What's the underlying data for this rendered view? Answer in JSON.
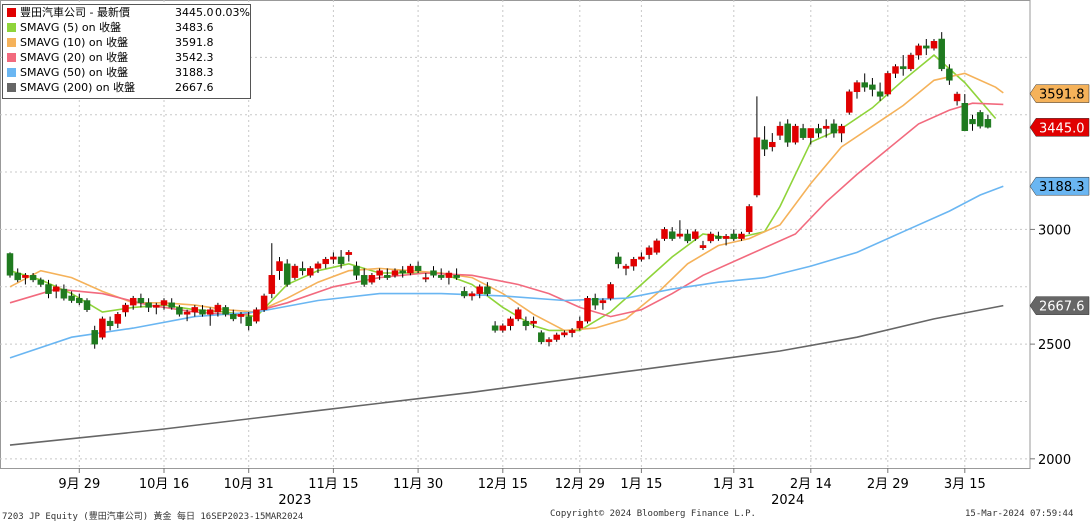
{
  "legend": [
    {
      "name": "豐田汽車公司 - 最新價",
      "value": "3445.0",
      "change": "0.03%",
      "color": "#e00000"
    },
    {
      "name": "SMAVG (5)  on 收盤",
      "value": "3483.6",
      "color": "#8fd43a"
    },
    {
      "name": "SMAVG (10)  on 收盤",
      "value": "3591.8",
      "color": "#f5b25a"
    },
    {
      "name": "SMAVG (20)  on 收盤",
      "value": "3542.3",
      "color": "#f26a7e"
    },
    {
      "name": "SMAVG (50)  on 收盤",
      "value": "3188.3",
      "color": "#6ab6f2"
    },
    {
      "name": "SMAVG (200)  on 收盤",
      "value": "2667.6",
      "color": "#666666"
    }
  ],
  "footer": {
    "left": "7203 JP Equity (豐田汽車公司) 黃金  每日 16SEP2023-15MAR2024",
    "center": "Copyright© 2024 Bloomberg Finance L.P.",
    "right": "15-Mar-2024 07:59:44"
  },
  "chart_data": {
    "type": "candlestick",
    "ylim": [
      1960,
      4000
    ],
    "yticks": [
      2000,
      2500,
      3000
    ],
    "xticks": [
      {
        "label": "9月 29",
        "i": 9
      },
      {
        "label": "10月 16",
        "i": 20
      },
      {
        "label": "10月 31",
        "i": 31
      },
      {
        "label": "11月 15",
        "i": 42
      },
      {
        "label": "11月 30",
        "i": 53
      },
      {
        "label": "12月 15",
        "i": 64
      },
      {
        "label": "12月 29",
        "i": 74
      },
      {
        "label": "1月 15",
        "i": 82
      },
      {
        "label": "1月 31",
        "i": 94
      },
      {
        "label": "2月 14",
        "i": 104
      },
      {
        "label": "2月 29",
        "i": 114
      },
      {
        "label": "3月 15",
        "i": 124
      }
    ],
    "years": [
      {
        "label": "2023",
        "i": 37
      },
      {
        "label": "2024",
        "i": 101
      }
    ],
    "bull_color": "#e00000",
    "bear_color": "#1f7a1f",
    "candles": [
      [
        2895,
        2900,
        2790,
        2800
      ],
      [
        2810,
        2830,
        2770,
        2780
      ],
      [
        2790,
        2810,
        2760,
        2800
      ],
      [
        2800,
        2810,
        2770,
        2780
      ],
      [
        2780,
        2790,
        2750,
        2760
      ],
      [
        2760,
        2780,
        2700,
        2720
      ],
      [
        2730,
        2760,
        2700,
        2750
      ],
      [
        2740,
        2760,
        2690,
        2700
      ],
      [
        2710,
        2730,
        2680,
        2690
      ],
      [
        2700,
        2720,
        2670,
        2680
      ],
      [
        2690,
        2700,
        2640,
        2650
      ],
      [
        2560,
        2580,
        2480,
        2500
      ],
      [
        2530,
        2620,
        2520,
        2610
      ],
      [
        2600,
        2620,
        2560,
        2580
      ],
      [
        2590,
        2640,
        2570,
        2630
      ],
      [
        2640,
        2680,
        2620,
        2670
      ],
      [
        2670,
        2710,
        2650,
        2700
      ],
      [
        2700,
        2720,
        2660,
        2680
      ],
      [
        2680,
        2700,
        2640,
        2660
      ],
      [
        2660,
        2680,
        2630,
        2670
      ],
      [
        2670,
        2700,
        2650,
        2690
      ],
      [
        2680,
        2700,
        2650,
        2660
      ],
      [
        2660,
        2670,
        2620,
        2630
      ],
      [
        2630,
        2650,
        2600,
        2640
      ],
      [
        2640,
        2670,
        2620,
        2660
      ],
      [
        2650,
        2670,
        2620,
        2630
      ],
      [
        2630,
        2660,
        2580,
        2650
      ],
      [
        2640,
        2680,
        2620,
        2670
      ],
      [
        2660,
        2670,
        2620,
        2630
      ],
      [
        2630,
        2650,
        2600,
        2610
      ],
      [
        2620,
        2640,
        2590,
        2630
      ],
      [
        2620,
        2640,
        2560,
        2580
      ],
      [
        2600,
        2660,
        2590,
        2650
      ],
      [
        2650,
        2720,
        2640,
        2710
      ],
      [
        2720,
        2940,
        2700,
        2800
      ],
      [
        2820,
        2880,
        2780,
        2860
      ],
      [
        2850,
        2870,
        2750,
        2760
      ],
      [
        2790,
        2850,
        2780,
        2840
      ],
      [
        2830,
        2860,
        2800,
        2820
      ],
      [
        2800,
        2840,
        2790,
        2830
      ],
      [
        2830,
        2860,
        2810,
        2850
      ],
      [
        2850,
        2880,
        2830,
        2870
      ],
      [
        2870,
        2900,
        2850,
        2880
      ],
      [
        2880,
        2910,
        2830,
        2850
      ],
      [
        2890,
        2910,
        2860,
        2900
      ],
      [
        2840,
        2860,
        2780,
        2800
      ],
      [
        2800,
        2830,
        2750,
        2760
      ],
      [
        2770,
        2810,
        2760,
        2800
      ],
      [
        2800,
        2830,
        2780,
        2820
      ],
      [
        2800,
        2830,
        2780,
        2790
      ],
      [
        2800,
        2830,
        2790,
        2820
      ],
      [
        2820,
        2840,
        2790,
        2810
      ],
      [
        2810,
        2850,
        2800,
        2840
      ],
      [
        2840,
        2860,
        2810,
        2820
      ],
      [
        2790,
        2810,
        2770,
        2790
      ],
      [
        2820,
        2840,
        2790,
        2800
      ],
      [
        2800,
        2830,
        2780,
        2790
      ],
      [
        2790,
        2820,
        2760,
        2810
      ],
      [
        2800,
        2830,
        2780,
        2790
      ],
      [
        2730,
        2750,
        2700,
        2710
      ],
      [
        2710,
        2730,
        2690,
        2720
      ],
      [
        2720,
        2760,
        2700,
        2750
      ],
      [
        2750,
        2770,
        2710,
        2720
      ],
      [
        2580,
        2600,
        2550,
        2560
      ],
      [
        2560,
        2590,
        2550,
        2580
      ],
      [
        2580,
        2620,
        2560,
        2610
      ],
      [
        2610,
        2660,
        2600,
        2650
      ],
      [
        2600,
        2620,
        2560,
        2580
      ],
      [
        2590,
        2620,
        2570,
        2600
      ],
      [
        2550,
        2560,
        2500,
        2510
      ],
      [
        2510,
        2530,
        2490,
        2520
      ],
      [
        2520,
        2550,
        2510,
        2540
      ],
      [
        2540,
        2560,
        2530,
        2550
      ],
      [
        2550,
        2570,
        2530,
        2560
      ],
      [
        2570,
        2620,
        2560,
        2600
      ],
      [
        2600,
        2710,
        2590,
        2700
      ],
      [
        2700,
        2720,
        2650,
        2670
      ],
      [
        2680,
        2700,
        2650,
        2690
      ],
      [
        2700,
        2770,
        2690,
        2760
      ],
      [
        2880,
        2900,
        2830,
        2850
      ],
      [
        2830,
        2850,
        2800,
        2840
      ],
      [
        2840,
        2880,
        2820,
        2870
      ],
      [
        2870,
        2900,
        2860,
        2880
      ],
      [
        2890,
        2930,
        2870,
        2920
      ],
      [
        2900,
        2960,
        2890,
        2950
      ],
      [
        2960,
        3010,
        2950,
        3000
      ],
      [
        2990,
        3010,
        2950,
        2960
      ],
      [
        2970,
        3040,
        2960,
        2980
      ],
      [
        2980,
        3000,
        2940,
        2950
      ],
      [
        2960,
        3000,
        2950,
        2990
      ],
      [
        2920,
        2950,
        2910,
        2930
      ],
      [
        2950,
        2990,
        2940,
        2980
      ],
      [
        2970,
        2990,
        2950,
        2960
      ],
      [
        2960,
        2980,
        2930,
        2970
      ],
      [
        2980,
        3000,
        2950,
        2960
      ],
      [
        2960,
        2990,
        2950,
        2980
      ],
      [
        2990,
        3110,
        2980,
        3100
      ],
      [
        3150,
        3580,
        3140,
        3400
      ],
      [
        3390,
        3450,
        3320,
        3350
      ],
      [
        3360,
        3420,
        3340,
        3380
      ],
      [
        3410,
        3470,
        3390,
        3450
      ],
      [
        3460,
        3480,
        3360,
        3380
      ],
      [
        3380,
        3460,
        3370,
        3450
      ],
      [
        3440,
        3460,
        3390,
        3400
      ],
      [
        3400,
        3440,
        3370,
        3440
      ],
      [
        3440,
        3460,
        3400,
        3420
      ],
      [
        3440,
        3480,
        3400,
        3450
      ],
      [
        3460,
        3480,
        3400,
        3420
      ],
      [
        3420,
        3460,
        3380,
        3450
      ],
      [
        3510,
        3610,
        3500,
        3600
      ],
      [
        3600,
        3650,
        3570,
        3640
      ],
      [
        3640,
        3680,
        3600,
        3620
      ],
      [
        3630,
        3660,
        3580,
        3610
      ],
      [
        3600,
        3640,
        3560,
        3580
      ],
      [
        3590,
        3690,
        3580,
        3680
      ],
      [
        3680,
        3720,
        3660,
        3710
      ],
      [
        3710,
        3760,
        3670,
        3700
      ],
      [
        3700,
        3770,
        3690,
        3760
      ],
      [
        3760,
        3810,
        3740,
        3800
      ],
      [
        3800,
        3830,
        3760,
        3790
      ],
      [
        3790,
        3830,
        3780,
        3820
      ],
      [
        3830,
        3860,
        3690,
        3700
      ],
      [
        3700,
        3720,
        3630,
        3650
      ],
      [
        3560,
        3600,
        3540,
        3590
      ],
      [
        3550,
        3590,
        3430,
        3430
      ],
      [
        3480,
        3500,
        3430,
        3460
      ],
      [
        3510,
        3520,
        3440,
        3450
      ],
      [
        3480,
        3500,
        3440,
        3445
      ]
    ],
    "series": [
      {
        "name": "SMAVG (5)",
        "color": "#8fd43a",
        "last": 3483.6,
        "points": [
          [
            0,
            2820
          ],
          [
            4,
            2780
          ],
          [
            8,
            2720
          ],
          [
            12,
            2640
          ],
          [
            16,
            2660
          ],
          [
            20,
            2670
          ],
          [
            24,
            2650
          ],
          [
            28,
            2640
          ],
          [
            32,
            2620
          ],
          [
            36,
            2760
          ],
          [
            40,
            2820
          ],
          [
            44,
            2850
          ],
          [
            48,
            2810
          ],
          [
            52,
            2810
          ],
          [
            56,
            2810
          ],
          [
            60,
            2760
          ],
          [
            64,
            2660
          ],
          [
            68,
            2580
          ],
          [
            70,
            2560
          ],
          [
            74,
            2560
          ],
          [
            78,
            2640
          ],
          [
            82,
            2760
          ],
          [
            86,
            2880
          ],
          [
            90,
            2980
          ],
          [
            94,
            2960
          ],
          [
            98,
            2990
          ],
          [
            100,
            3100
          ],
          [
            104,
            3380
          ],
          [
            108,
            3440
          ],
          [
            112,
            3530
          ],
          [
            116,
            3650
          ],
          [
            120,
            3760
          ],
          [
            124,
            3640
          ],
          [
            128,
            3483.6
          ]
        ]
      },
      {
        "name": "SMAVG (10)",
        "color": "#f5b25a",
        "last": 3591.8,
        "points": [
          [
            0,
            2750
          ],
          [
            4,
            2820
          ],
          [
            8,
            2790
          ],
          [
            12,
            2730
          ],
          [
            16,
            2680
          ],
          [
            20,
            2680
          ],
          [
            24,
            2670
          ],
          [
            28,
            2650
          ],
          [
            32,
            2640
          ],
          [
            36,
            2700
          ],
          [
            40,
            2770
          ],
          [
            44,
            2820
          ],
          [
            48,
            2830
          ],
          [
            52,
            2820
          ],
          [
            56,
            2810
          ],
          [
            60,
            2790
          ],
          [
            64,
            2720
          ],
          [
            68,
            2630
          ],
          [
            72,
            2560
          ],
          [
            76,
            2570
          ],
          [
            80,
            2610
          ],
          [
            84,
            2720
          ],
          [
            88,
            2850
          ],
          [
            92,
            2930
          ],
          [
            96,
            2960
          ],
          [
            100,
            3020
          ],
          [
            104,
            3200
          ],
          [
            108,
            3360
          ],
          [
            112,
            3450
          ],
          [
            116,
            3540
          ],
          [
            120,
            3650
          ],
          [
            124,
            3680
          ],
          [
            128,
            3620
          ],
          [
            129,
            3595
          ]
        ]
      },
      {
        "name": "SMAVG (20)",
        "color": "#f26a7e",
        "last": 3542.3,
        "points": [
          [
            0,
            2680
          ],
          [
            6,
            2740
          ],
          [
            12,
            2720
          ],
          [
            18,
            2670
          ],
          [
            24,
            2640
          ],
          [
            30,
            2625
          ],
          [
            36,
            2680
          ],
          [
            42,
            2750
          ],
          [
            48,
            2790
          ],
          [
            54,
            2810
          ],
          [
            60,
            2800
          ],
          [
            66,
            2760
          ],
          [
            70,
            2720
          ],
          [
            74,
            2660
          ],
          [
            78,
            2620
          ],
          [
            82,
            2650
          ],
          [
            86,
            2720
          ],
          [
            90,
            2800
          ],
          [
            96,
            2890
          ],
          [
            102,
            2980
          ],
          [
            106,
            3120
          ],
          [
            110,
            3240
          ],
          [
            114,
            3350
          ],
          [
            118,
            3460
          ],
          [
            122,
            3520
          ],
          [
            125,
            3550
          ],
          [
            129,
            3545
          ]
        ]
      },
      {
        "name": "SMAVG (50)",
        "color": "#6ab6f2",
        "last": 3188.3,
        "points": [
          [
            0,
            2440
          ],
          [
            8,
            2530
          ],
          [
            16,
            2570
          ],
          [
            24,
            2620
          ],
          [
            32,
            2640
          ],
          [
            40,
            2690
          ],
          [
            48,
            2720
          ],
          [
            56,
            2720
          ],
          [
            64,
            2710
          ],
          [
            72,
            2690
          ],
          [
            80,
            2700
          ],
          [
            86,
            2740
          ],
          [
            92,
            2770
          ],
          [
            98,
            2790
          ],
          [
            104,
            2840
          ],
          [
            110,
            2900
          ],
          [
            116,
            2990
          ],
          [
            122,
            3080
          ],
          [
            126,
            3150
          ],
          [
            129,
            3188
          ]
        ]
      },
      {
        "name": "SMAVG (200)",
        "color": "#666666",
        "last": 2667.6,
        "points": [
          [
            0,
            2060
          ],
          [
            20,
            2130
          ],
          [
            40,
            2210
          ],
          [
            60,
            2290
          ],
          [
            80,
            2380
          ],
          [
            100,
            2470
          ],
          [
            110,
            2530
          ],
          [
            120,
            2610
          ],
          [
            129,
            2668
          ]
        ]
      }
    ]
  }
}
